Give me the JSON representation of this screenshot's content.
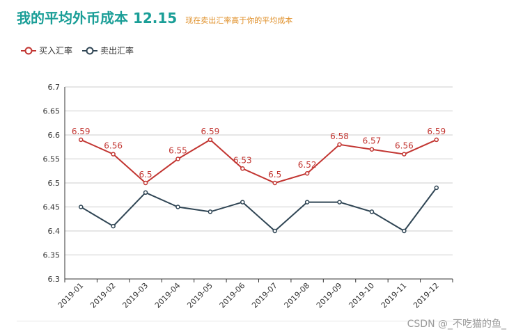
{
  "header": {
    "title": "我的平均外币成本 12.15",
    "subtitle": "现在卖出汇率高于你的平均成本"
  },
  "watermark": "CSDN @_不吃猫的鱼_",
  "colors": {
    "buy": "#c23531",
    "sell": "#2f4554",
    "title": "#1a9e97",
    "subtitle": "#e0902a",
    "grid": "#cccccc",
    "axis": "#333333"
  },
  "chart_data": {
    "type": "line",
    "title": "我的平均外币成本 12.15",
    "subtitle": "现在卖出汇率高于你的平均成本",
    "categories": [
      "2019-01",
      "2019-02",
      "2019-03",
      "2019-04",
      "2019-05",
      "2019-06",
      "2019-07",
      "2019-08",
      "2019-09",
      "2019-10",
      "2019-11",
      "2019-12"
    ],
    "series": [
      {
        "name": "买入汇率",
        "values": [
          6.59,
          6.56,
          6.5,
          6.55,
          6.59,
          6.53,
          6.5,
          6.52,
          6.58,
          6.57,
          6.56,
          6.59
        ],
        "labels_shown": true
      },
      {
        "name": "卖出汇率",
        "values": [
          6.45,
          6.41,
          6.48,
          6.45,
          6.44,
          6.46,
          6.4,
          6.46,
          6.46,
          6.44,
          6.4,
          6.49
        ],
        "labels_shown": false
      }
    ],
    "ylim": [
      6.3,
      6.7
    ],
    "yticks": [
      "6.3",
      "6.35",
      "6.4",
      "6.45",
      "6.5",
      "6.55",
      "6.6",
      "6.65",
      "6.7"
    ],
    "grid": true,
    "legend": "top-left"
  }
}
